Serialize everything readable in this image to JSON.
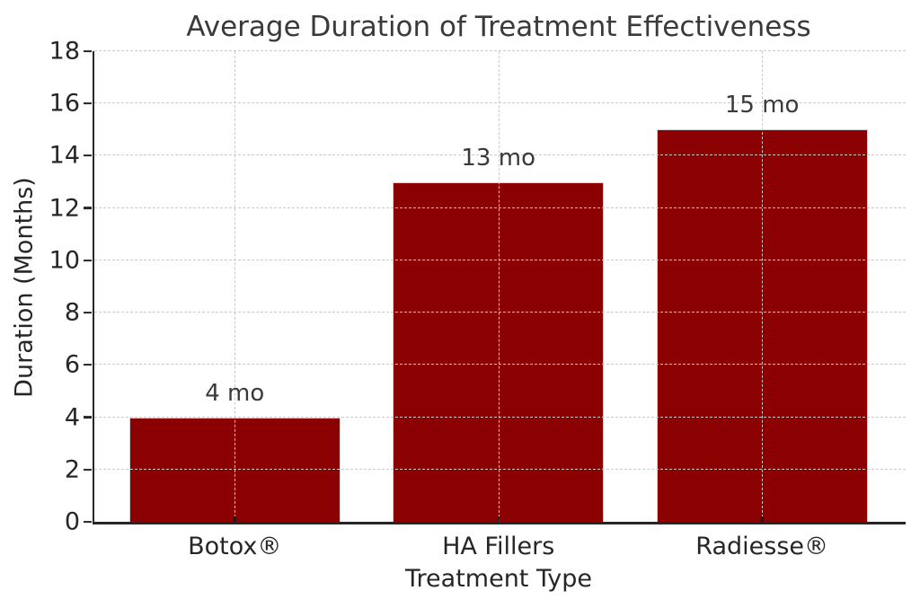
{
  "chart_data": {
    "type": "bar",
    "title": "Average Duration of Treatment Effectiveness",
    "xlabel": "Treatment Type",
    "ylabel": "Duration (Months)",
    "categories": [
      "Botox®",
      "HA Fillers",
      "Radiesse®"
    ],
    "values": [
      4,
      13,
      15
    ],
    "bar_labels": [
      "4 mo",
      "13 mo",
      "15 mo"
    ],
    "ylim": [
      0,
      18
    ],
    "ytick_step": 2,
    "grid": true,
    "grid_style": "dashed",
    "grid_above_bars": true,
    "legend": false,
    "colors": {
      "bar": "#8B0000",
      "bar_edge": "#d4d4d4",
      "grid": "#c9c9c9",
      "spine": "#262626",
      "text": "#3a3a3a"
    },
    "layout_hints": {
      "first_center_pct": 17.3,
      "center_spacing_pct": 32.5,
      "bar_width_pct": 26
    }
  }
}
